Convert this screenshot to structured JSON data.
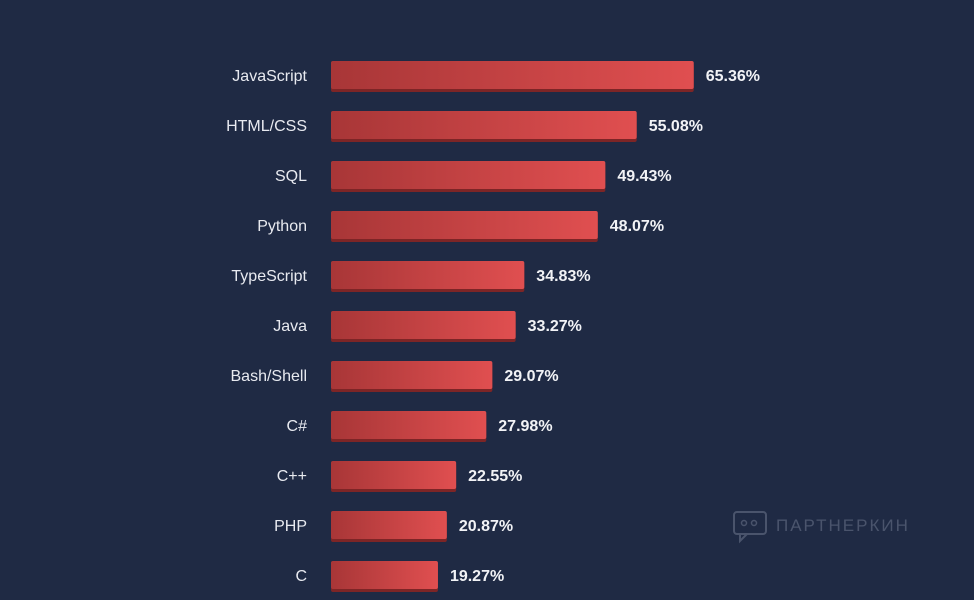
{
  "chart_data": {
    "type": "bar",
    "orientation": "horizontal",
    "categories": [
      "JavaScript",
      "HTML/CSS",
      "SQL",
      "Python",
      "TypeScript",
      "Java",
      "Bash/Shell",
      "C#",
      "C++",
      "PHP",
      "C"
    ],
    "values": [
      65.36,
      55.08,
      49.43,
      48.07,
      34.83,
      33.27,
      29.07,
      27.98,
      22.55,
      20.87,
      19.27
    ],
    "value_labels": [
      "65.36%",
      "55.08%",
      "49.43%",
      "48.07%",
      "34.83%",
      "33.27%",
      "29.07%",
      "27.98%",
      "22.55%",
      "20.87%",
      "19.27%"
    ],
    "xlim": [
      0,
      100
    ],
    "grid": false,
    "legend": "none"
  },
  "colors": {
    "background": "#1f2a44",
    "bar_light": "#e04f50",
    "bar_dark": "#a83637",
    "bar_shadow": "#7d2526"
  },
  "watermark": {
    "icon": "chat-bubble-icon",
    "text": "ПАРТНЕРКИН"
  }
}
